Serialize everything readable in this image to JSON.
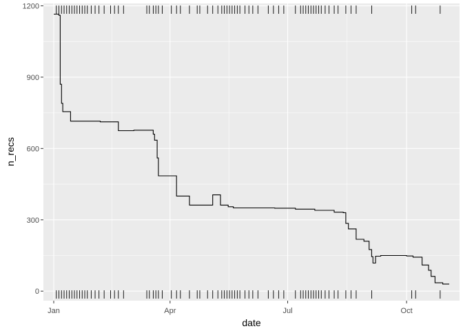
{
  "chart_data": {
    "type": "line",
    "xlabel": "date",
    "ylabel": "n_recs",
    "x_is_date": true,
    "xlim": [
      "2020-12-24",
      "2021-11-11"
    ],
    "ylim": [
      -40,
      1210
    ],
    "grid": true,
    "x_ticks": [
      {
        "date": "2021-01-01",
        "label": "Jan"
      },
      {
        "date": "2021-04-01",
        "label": "Apr"
      },
      {
        "date": "2021-07-01",
        "label": "Jul"
      },
      {
        "date": "2021-10-01",
        "label": "Oct"
      }
    ],
    "y_ticks": [
      0,
      300,
      600,
      900,
      1200
    ],
    "series": [
      {
        "x": [
          "2021-01-01",
          "2021-01-04",
          "2021-01-05",
          "2021-01-06",
          "2021-01-07",
          "2021-01-08",
          "2021-01-12",
          "2021-01-14",
          "2021-02-06",
          "2021-02-19",
          "2021-02-20",
          "2021-03-04",
          "2021-03-15",
          "2021-03-19",
          "2021-03-20",
          "2021-03-22",
          "2021-03-23",
          "2021-03-25",
          "2021-04-02",
          "2021-04-06",
          "2021-04-14",
          "2021-04-16",
          "2021-05-02",
          "2021-05-04",
          "2021-05-08",
          "2021-05-10",
          "2021-05-14",
          "2021-05-16",
          "2021-05-20",
          "2021-06-05",
          "2021-06-21",
          "2021-07-07",
          "2021-07-22",
          "2021-08-06",
          "2021-08-13",
          "2021-08-15",
          "2021-08-17",
          "2021-08-19",
          "2021-08-23",
          "2021-08-27",
          "2021-08-29",
          "2021-09-02",
          "2021-09-04",
          "2021-09-05",
          "2021-09-07",
          "2021-09-11",
          "2021-09-20",
          "2021-10-01",
          "2021-10-06",
          "2021-10-13",
          "2021-10-15",
          "2021-10-18",
          "2021-10-20",
          "2021-10-23",
          "2021-10-29",
          "2021-11-03"
        ],
        "y": [
          1165,
          1165,
          1160,
          870,
          790,
          755,
          755,
          715,
          712,
          712,
          675,
          677,
          677,
          660,
          635,
          560,
          485,
          485,
          485,
          400,
          400,
          362,
          362,
          405,
          405,
          362,
          362,
          355,
          350,
          350,
          349,
          345,
          340,
          332,
          330,
          285,
          262,
          262,
          218,
          218,
          210,
          175,
          145,
          118,
          147,
          150,
          150,
          148,
          143,
          110,
          110,
          88,
          62,
          35,
          30,
          30
        ]
      }
    ],
    "rug": {
      "top": [
        "2021-01-03",
        "2021-01-05",
        "2021-01-07",
        "2021-01-09",
        "2021-01-11",
        "2021-01-13",
        "2021-01-15",
        "2021-01-17",
        "2021-01-19",
        "2021-01-21",
        "2021-01-23",
        "2021-01-25",
        "2021-01-27",
        "2021-01-30",
        "2021-02-02",
        "2021-02-05",
        "2021-02-09",
        "2021-02-14",
        "2021-02-17",
        "2021-02-20",
        "2021-02-24",
        "2021-03-14",
        "2021-03-16",
        "2021-03-19",
        "2021-03-21",
        "2021-03-23",
        "2021-03-26",
        "2021-04-02",
        "2021-04-06",
        "2021-04-09",
        "2021-04-16",
        "2021-04-22",
        "2021-04-24",
        "2021-04-30",
        "2021-05-04",
        "2021-05-08",
        "2021-05-11",
        "2021-05-13",
        "2021-05-15",
        "2021-05-17",
        "2021-05-19",
        "2021-05-21",
        "2021-05-23",
        "2021-05-25",
        "2021-05-29",
        "2021-06-01",
        "2021-06-04",
        "2021-06-08",
        "2021-06-16",
        "2021-06-20",
        "2021-06-24",
        "2021-06-28",
        "2021-07-07",
        "2021-07-11",
        "2021-07-13",
        "2021-07-15",
        "2021-07-17",
        "2021-07-19",
        "2021-07-21",
        "2021-07-23",
        "2021-07-25",
        "2021-07-27",
        "2021-07-30",
        "2021-08-02",
        "2021-08-06",
        "2021-08-09",
        "2021-08-15",
        "2021-08-19",
        "2021-08-23",
        "2021-09-04",
        "2021-10-05",
        "2021-10-08",
        "2021-10-27"
      ],
      "bottom": [
        "2021-01-03",
        "2021-01-05",
        "2021-01-07",
        "2021-01-09",
        "2021-01-11",
        "2021-01-13",
        "2021-01-15",
        "2021-01-17",
        "2021-01-19",
        "2021-01-21",
        "2021-01-23",
        "2021-01-25",
        "2021-01-27",
        "2021-01-30",
        "2021-02-02",
        "2021-02-05",
        "2021-02-09",
        "2021-02-14",
        "2021-02-17",
        "2021-02-20",
        "2021-02-24",
        "2021-03-14",
        "2021-03-16",
        "2021-03-19",
        "2021-03-21",
        "2021-03-23",
        "2021-03-26",
        "2021-04-02",
        "2021-04-06",
        "2021-04-09",
        "2021-04-16",
        "2021-04-22",
        "2021-04-24",
        "2021-04-30",
        "2021-05-04",
        "2021-05-08",
        "2021-05-11",
        "2021-05-13",
        "2021-05-15",
        "2021-05-17",
        "2021-05-19",
        "2021-05-21",
        "2021-05-23",
        "2021-05-25",
        "2021-05-29",
        "2021-06-01",
        "2021-06-04",
        "2021-06-08",
        "2021-06-16",
        "2021-06-20",
        "2021-06-24",
        "2021-06-28",
        "2021-07-07",
        "2021-07-11",
        "2021-07-13",
        "2021-07-15",
        "2021-07-17",
        "2021-07-19",
        "2021-07-21",
        "2021-07-23",
        "2021-07-25",
        "2021-07-27",
        "2021-07-30",
        "2021-08-02",
        "2021-08-06",
        "2021-08-09",
        "2021-08-15",
        "2021-08-19",
        "2021-08-23",
        "2021-09-04",
        "2021-10-05",
        "2021-10-08",
        "2021-10-27"
      ]
    },
    "colors": {
      "panel_background": "#ebebeb",
      "gridline": "#ffffff",
      "line": "#000000",
      "tick_text": "#4d4d4d"
    }
  }
}
